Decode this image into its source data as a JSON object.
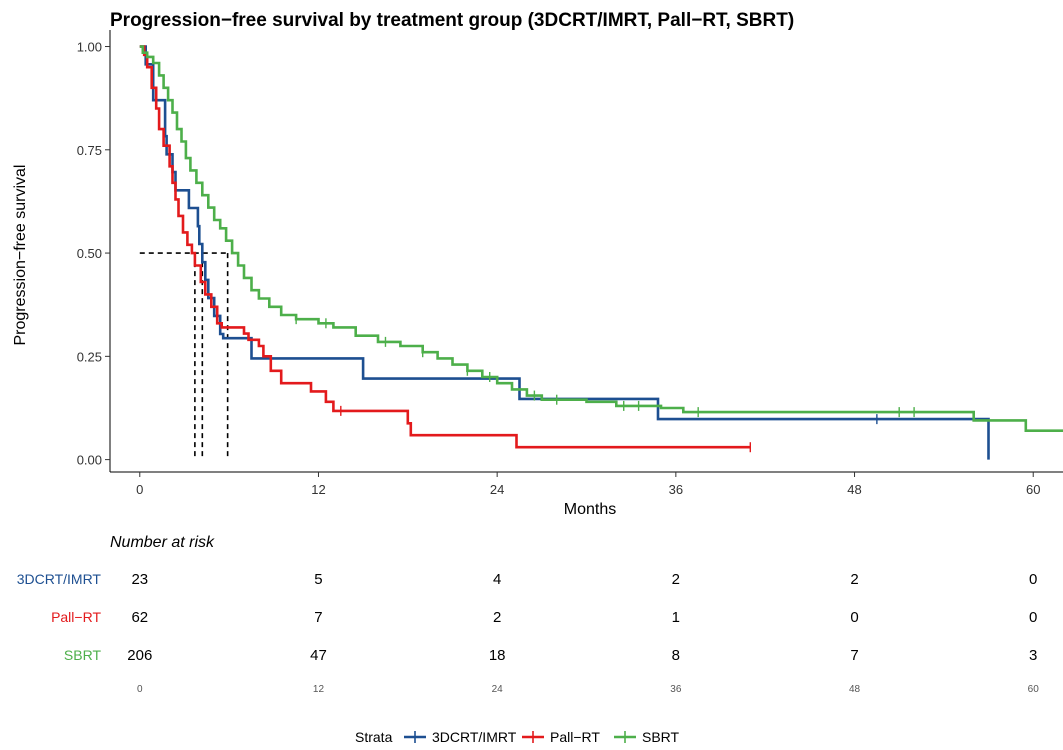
{
  "chart_data": {
    "type": "line",
    "title": "Progression−free survival by treatment group (3DCRT/IMRT, Pall−RT, SBRT)",
    "xlabel": "Months",
    "ylabel": "Progression−free survival",
    "xlim": [
      -2,
      62
    ],
    "ylim": [
      -0.03,
      1.04
    ],
    "x_ticks": [
      0,
      12,
      24,
      36,
      48,
      60
    ],
    "y_ticks": [
      0,
      0.25,
      0.5,
      0.75,
      1.0
    ],
    "y_tick_labels": [
      "0.00",
      "0.25",
      "0.50",
      "0.75",
      "1.00"
    ],
    "x_tick_labels": [
      "0",
      "12",
      "24",
      "36",
      "48",
      "60"
    ],
    "grid": false,
    "legend": {
      "title": "Strata",
      "position": "bottom"
    },
    "series": [
      {
        "name": "3DCRT/IMRT",
        "color": "#1d4f91",
        "points": [
          [
            0,
            1.0
          ],
          [
            0.4,
            0.957
          ],
          [
            0.9,
            0.87
          ],
          [
            1.7,
            0.783
          ],
          [
            1.8,
            0.739
          ],
          [
            2.2,
            0.696
          ],
          [
            2.4,
            0.652
          ],
          [
            3.3,
            0.609
          ],
          [
            3.9,
            0.565
          ],
          [
            4.0,
            0.522
          ],
          [
            4.2,
            0.478
          ],
          [
            4.4,
            0.435
          ],
          [
            4.6,
            0.391
          ],
          [
            5.0,
            0.348
          ],
          [
            5.4,
            0.304
          ],
          [
            5.6,
            0.294
          ],
          [
            7.5,
            0.245
          ],
          [
            15.0,
            0.196
          ],
          [
            25.5,
            0.147
          ],
          [
            34.8,
            0.098
          ],
          [
            57.0,
            0.098
          ],
          [
            57.0,
            0.0
          ]
        ],
        "end_x": 57.0,
        "censor_x": [
          49.5
        ]
      },
      {
        "name": "Pall−RT",
        "color": "#e31a1c",
        "points": [
          [
            0,
            1.0
          ],
          [
            0.3,
            0.98
          ],
          [
            0.5,
            0.95
          ],
          [
            0.8,
            0.9
          ],
          [
            1.1,
            0.85
          ],
          [
            1.3,
            0.8
          ],
          [
            1.6,
            0.76
          ],
          [
            2.0,
            0.71
          ],
          [
            2.2,
            0.67
          ],
          [
            2.4,
            0.63
          ],
          [
            2.6,
            0.59
          ],
          [
            2.9,
            0.55
          ],
          [
            3.2,
            0.52
          ],
          [
            3.5,
            0.5
          ],
          [
            3.7,
            0.47
          ],
          [
            4.1,
            0.43
          ],
          [
            4.4,
            0.4
          ],
          [
            4.8,
            0.37
          ],
          [
            5.2,
            0.33
          ],
          [
            5.5,
            0.32
          ],
          [
            7.0,
            0.305
          ],
          [
            7.3,
            0.29
          ],
          [
            8.0,
            0.275
          ],
          [
            8.3,
            0.25
          ],
          [
            8.8,
            0.215
          ],
          [
            9.5,
            0.185
          ],
          [
            11.5,
            0.165
          ],
          [
            12.5,
            0.14
          ],
          [
            13.0,
            0.118
          ],
          [
            18.0,
            0.088
          ],
          [
            18.2,
            0.059
          ],
          [
            25.3,
            0.03
          ],
          [
            41.0,
            0.03
          ]
        ],
        "end_x": 41.0,
        "censor_x": [
          13.5,
          41.0
        ]
      },
      {
        "name": "SBRT",
        "color": "#4daf4a",
        "points": [
          [
            0,
            1.0
          ],
          [
            0.2,
            0.985
          ],
          [
            0.5,
            0.975
          ],
          [
            0.9,
            0.96
          ],
          [
            1.3,
            0.93
          ],
          [
            1.6,
            0.9
          ],
          [
            1.9,
            0.87
          ],
          [
            2.2,
            0.84
          ],
          [
            2.5,
            0.8
          ],
          [
            2.8,
            0.77
          ],
          [
            3.1,
            0.73
          ],
          [
            3.4,
            0.7
          ],
          [
            3.8,
            0.67
          ],
          [
            4.2,
            0.64
          ],
          [
            4.6,
            0.61
          ],
          [
            5.0,
            0.58
          ],
          [
            5.4,
            0.56
          ],
          [
            5.8,
            0.53
          ],
          [
            6.2,
            0.5
          ],
          [
            6.6,
            0.47
          ],
          [
            7.0,
            0.44
          ],
          [
            7.5,
            0.41
          ],
          [
            8.0,
            0.39
          ],
          [
            8.7,
            0.37
          ],
          [
            9.5,
            0.35
          ],
          [
            10.5,
            0.34
          ],
          [
            12.0,
            0.33
          ],
          [
            13.0,
            0.32
          ],
          [
            14.5,
            0.3
          ],
          [
            16.0,
            0.285
          ],
          [
            17.5,
            0.275
          ],
          [
            19.0,
            0.26
          ],
          [
            20.0,
            0.245
          ],
          [
            21.0,
            0.23
          ],
          [
            22.0,
            0.215
          ],
          [
            23.0,
            0.2
          ],
          [
            24.0,
            0.185
          ],
          [
            25.0,
            0.17
          ],
          [
            26.0,
            0.155
          ],
          [
            27.0,
            0.145
          ],
          [
            30.0,
            0.14
          ],
          [
            32.0,
            0.13
          ],
          [
            35.0,
            0.125
          ],
          [
            36.5,
            0.115
          ],
          [
            56.0,
            0.115
          ],
          [
            56.0,
            0.095
          ],
          [
            59.5,
            0.095
          ],
          [
            59.5,
            0.07
          ],
          [
            62.0,
            0.07
          ]
        ],
        "end_x": 62.0,
        "censor_x": [
          10.5,
          12.5,
          16.5,
          19.0,
          22.0,
          23.5,
          26.5,
          28.0,
          32.5,
          33.5,
          37.5,
          51.0,
          52.0
        ]
      }
    ],
    "median_lines": {
      "y": 0.5,
      "x": [
        3.7,
        4.2,
        5.9
      ],
      "style": "dashed"
    },
    "risk_table": {
      "title": "Number at risk",
      "times": [
        0,
        12,
        24,
        36,
        48,
        60
      ],
      "time_labels": [
        "0",
        "12",
        "24",
        "36",
        "48",
        "60"
      ],
      "rows": [
        {
          "name": "3DCRT/IMRT",
          "color": "#1d4f91",
          "values": [
            "23",
            "5",
            "4",
            "2",
            "2",
            "0"
          ]
        },
        {
          "name": "Pall−RT",
          "color": "#e31a1c",
          "values": [
            "62",
            "7",
            "2",
            "1",
            "0",
            "0"
          ]
        },
        {
          "name": "SBRT",
          "color": "#4daf4a",
          "values": [
            "206",
            "47",
            "18",
            "8",
            "7",
            "3"
          ]
        }
      ]
    }
  }
}
